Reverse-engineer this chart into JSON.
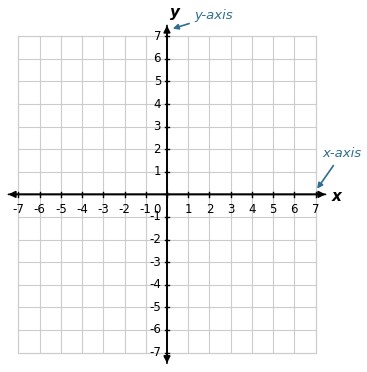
{
  "xlim": [
    -7,
    7
  ],
  "ylim": [
    -7,
    7
  ],
  "xticks": [
    -7,
    -6,
    -5,
    -4,
    -3,
    -2,
    -1,
    0,
    1,
    2,
    3,
    4,
    5,
    6,
    7
  ],
  "yticks": [
    -7,
    -6,
    -5,
    -4,
    -3,
    -2,
    -1,
    0,
    1,
    2,
    3,
    4,
    5,
    6,
    7
  ],
  "grid_color": "#cccccc",
  "axis_color": "#000000",
  "arrow_color": "#2e6e8e",
  "xlabel": "x",
  "ylabel": "y",
  "x_axis_label": "x-axis",
  "y_axis_label": "y-axis",
  "background_color": "#ffffff",
  "tick_fontsize": 8.5,
  "label_fontsize": 11,
  "annotation_fontsize": 9.5
}
